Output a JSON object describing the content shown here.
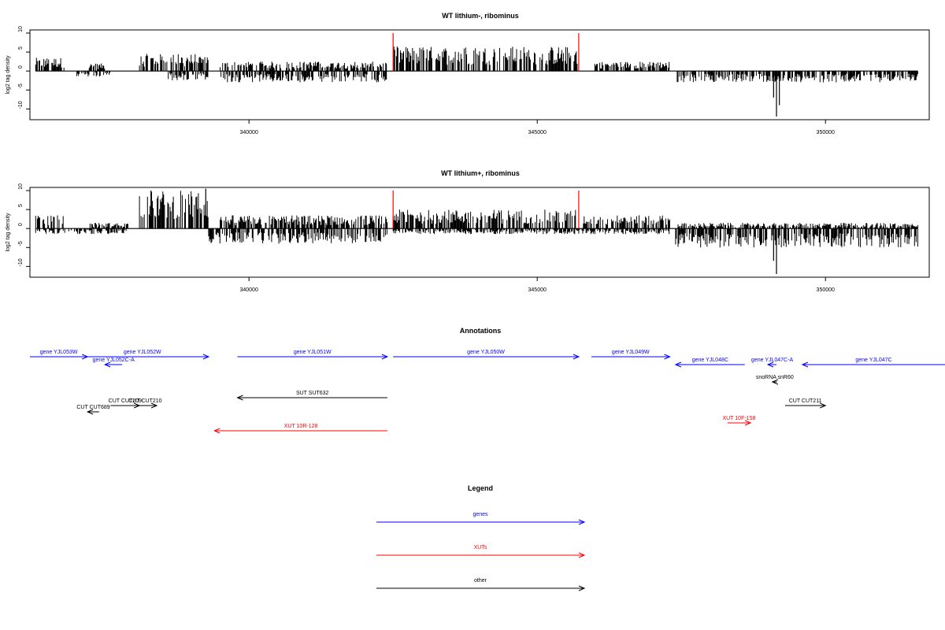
{
  "colors": {
    "gene": "#0000ff",
    "xut": "#ff0000",
    "other": "#000000",
    "marker": "#ff0000",
    "signal": "#000000"
  },
  "chart_data": [
    {
      "type": "bar",
      "title": "WT lithium-, ribominus",
      "ylabel": "log2 tag density",
      "xlim": [
        336200,
        351800
      ],
      "ylim": [
        -12,
        10
      ],
      "y_ticks": [
        10,
        5,
        0,
        -5,
        -10
      ],
      "x_ticks": [
        340000,
        345000,
        350000
      ],
      "markers": [
        342500,
        345720
      ],
      "series": [
        {
          "strand": "plus",
          "segments": [
            {
              "from": 336300,
              "to": 336800,
              "max": 3.5
            },
            {
              "from": 337200,
              "to": 337500,
              "max": 2.0
            },
            {
              "from": 338100,
              "to": 339300,
              "max": 4.5
            },
            {
              "from": 339500,
              "to": 342400,
              "max": 2.5
            },
            {
              "from": 342500,
              "to": 345700,
              "max": 6.5
            },
            {
              "from": 346000,
              "to": 347300,
              "max": 2.5
            }
          ]
        },
        {
          "strand": "minus",
          "segments": [
            {
              "from": 337000,
              "to": 337600,
              "max": 1.5
            },
            {
              "from": 338600,
              "to": 339300,
              "max": 2.5
            },
            {
              "from": 339500,
              "to": 342400,
              "max": 3.0
            },
            {
              "from": 347400,
              "to": 351600,
              "max": 3.0
            }
          ]
        }
      ],
      "peaks": [
        {
          "x": 349150,
          "value": -12.0
        },
        {
          "x": 349100,
          "value": -7.0
        },
        {
          "x": 349200,
          "value": -9.0
        }
      ]
    },
    {
      "type": "bar",
      "title": "WT lithium+, ribominus",
      "ylabel": "log2 tag density",
      "xlim": [
        336200,
        351800
      ],
      "ylim": [
        -12,
        10
      ],
      "y_ticks": [
        10,
        5,
        0,
        -5,
        -10
      ],
      "x_ticks": [
        340000,
        345000,
        350000
      ],
      "markers": [
        342500,
        345720
      ],
      "series": [
        {
          "strand": "plus",
          "segments": [
            {
              "from": 336300,
              "to": 336800,
              "max": 3.5
            },
            {
              "from": 337200,
              "to": 337900,
              "max": 1.5
            },
            {
              "from": 338100,
              "to": 339300,
              "max": 10.0
            },
            {
              "from": 339500,
              "to": 342400,
              "max": 3.5
            },
            {
              "from": 342500,
              "to": 345700,
              "max": 5.0
            },
            {
              "from": 345800,
              "to": 347300,
              "max": 3.5
            },
            {
              "from": 347400,
              "to": 351600,
              "max": 1.5
            }
          ]
        },
        {
          "strand": "minus",
          "segments": [
            {
              "from": 336300,
              "to": 337900,
              "max": 1.5
            },
            {
              "from": 339300,
              "to": 342400,
              "max": 4.0
            },
            {
              "from": 342500,
              "to": 347300,
              "max": 1.5
            },
            {
              "from": 347400,
              "to": 351600,
              "max": 5.0
            }
          ]
        }
      ],
      "peaks": [
        {
          "x": 338300,
          "value": 10.0
        },
        {
          "x": 339250,
          "value": 10.5
        },
        {
          "x": 349150,
          "value": -12.0
        },
        {
          "x": 349100,
          "value": -8.5
        }
      ]
    }
  ],
  "annotations": {
    "title": "Annotations",
    "features": [
      {
        "label": "gene YJL053W",
        "type": "gene",
        "start": 336200,
        "end": 337200,
        "strand": "+",
        "row": 0
      },
      {
        "label": "gene YJL052C-A",
        "type": "gene",
        "start": 337500,
        "end": 337800,
        "strand": "-",
        "row": 1
      },
      {
        "label": "gene YJL052W",
        "type": "gene",
        "start": 337000,
        "end": 339300,
        "strand": "+",
        "row": 0
      },
      {
        "label": "gene YJL051W",
        "type": "gene",
        "start": 339800,
        "end": 342400,
        "strand": "+",
        "row": 0
      },
      {
        "label": "gene YJL050W",
        "type": "gene",
        "start": 342500,
        "end": 345720,
        "strand": "+",
        "row": 0
      },
      {
        "label": "gene YJL049W",
        "type": "gene",
        "start": 345940,
        "end": 347300,
        "strand": "+",
        "row": 0
      },
      {
        "label": "gene YJL048C",
        "type": "gene",
        "start": 347400,
        "end": 348600,
        "strand": "-",
        "row": 1
      },
      {
        "label": "gene YJL047C-A",
        "type": "gene",
        "start": 349000,
        "end": 349150,
        "strand": "-",
        "row": 1
      },
      {
        "label": "gene YJL047C",
        "type": "gene",
        "start": 349600,
        "end": 352500,
        "strand": "-",
        "row": 1
      },
      {
        "label": "snoRNA snR60",
        "type": "other",
        "start": 349080,
        "end": 349160,
        "strand": "-",
        "row": 2
      },
      {
        "label": "SUT SUT632",
        "type": "other",
        "start": 339800,
        "end": 342400,
        "strand": "-",
        "row": 3
      },
      {
        "label": "CUT CUT209",
        "type": "other",
        "start": 337600,
        "end": 338100,
        "strand": "+",
        "row": 4
      },
      {
        "label": "CUT CUT210",
        "type": "other",
        "start": 338000,
        "end": 338400,
        "strand": "+",
        "row": 4
      },
      {
        "label": "CUT CUT689",
        "type": "other",
        "start": 337200,
        "end": 337400,
        "strand": "-",
        "row": 5
      },
      {
        "label": "CUT CUT211",
        "type": "other",
        "start": 349300,
        "end": 350000,
        "strand": "+",
        "row": 4
      },
      {
        "label": "XUT 10R-128",
        "type": "xut",
        "start": 339400,
        "end": 342400,
        "strand": "-",
        "row": 6
      },
      {
        "label": "XUT 10F-158",
        "type": "xut",
        "start": 348300,
        "end": 348700,
        "strand": "+",
        "row": 7
      }
    ]
  },
  "legend": {
    "title": "Legend",
    "items": [
      {
        "label": "genes",
        "type": "gene"
      },
      {
        "label": "XUTs",
        "type": "xut"
      },
      {
        "label": "other",
        "type": "other"
      }
    ]
  }
}
